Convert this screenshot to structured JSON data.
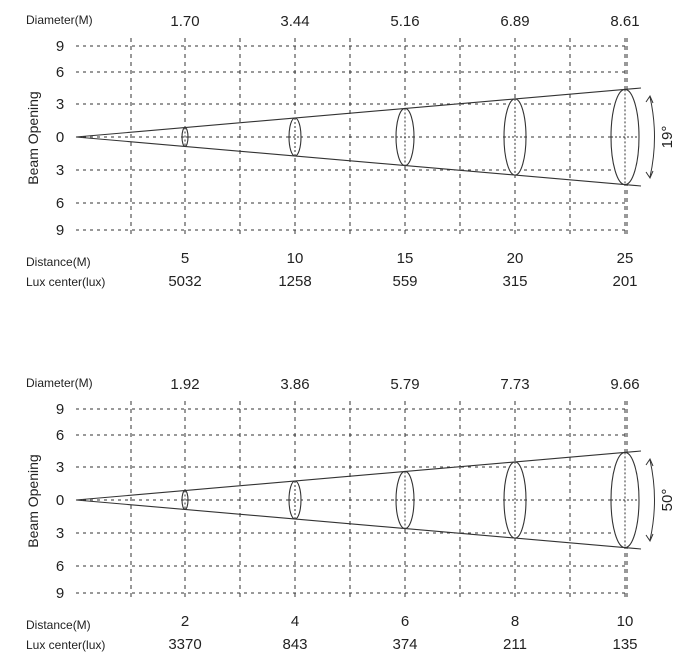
{
  "diagrams": [
    {
      "diameter_label": "Diameter(M)",
      "diameters": [
        "1.70",
        "3.44",
        "5.16",
        "6.89",
        "8.61"
      ],
      "y_axis_label": "Beam Opening",
      "y_ticks": [
        "9",
        "6",
        "3",
        "0",
        "3",
        "6",
        "9"
      ],
      "distance_label": "Distance(M)",
      "distances": [
        "5",
        "10",
        "15",
        "20",
        "25"
      ],
      "lux_label": "Lux center(lux)",
      "lux": [
        "5032",
        "1258",
        "559",
        "315",
        "201"
      ],
      "angle": "19°"
    },
    {
      "diameter_label": "Diameter(M)",
      "diameters": [
        "1.92",
        "3.86",
        "5.79",
        "7.73",
        "9.66"
      ],
      "y_axis_label": "Beam Opening",
      "y_ticks": [
        "9",
        "6",
        "3",
        "0",
        "3",
        "6",
        "9"
      ],
      "distance_label": "Distance(M)",
      "distances": [
        "2",
        "4",
        "6",
        "8",
        "10"
      ],
      "lux_label": "Lux center(lux)",
      "lux": [
        "3370",
        "843",
        "374",
        "211",
        "135"
      ],
      "angle": "50°"
    }
  ]
}
